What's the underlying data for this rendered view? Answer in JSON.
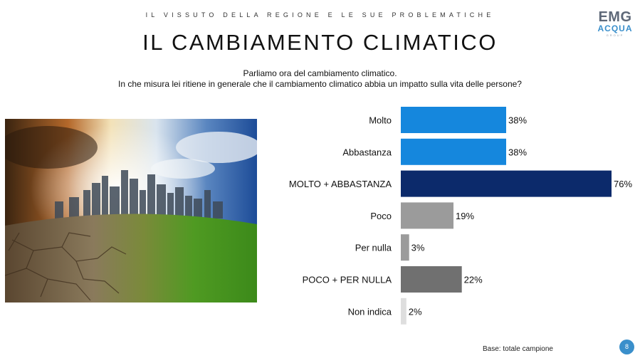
{
  "header": {
    "kicker": "IL VISSUTO DELLA REGIONE E LE SUE PROBLEMATICHE",
    "title": "IL CAMBIAMENTO CLIMATICO",
    "question_line1": "Parliamo ora del cambiamento climatico.",
    "question_line2": "In che misura lei ritiene in generale che il cambiamento climatico abbia un impatto sulla vita delle persone?"
  },
  "logo": {
    "line1": "EMG",
    "line2": "ACQUA",
    "line3": "GROUP"
  },
  "chart_data": {
    "type": "bar",
    "orientation": "horizontal",
    "categories": [
      "Molto",
      "Abbastanza",
      "MOLTO + ABBASTANZA",
      "Poco",
      "Per nulla",
      "POCO + PER NULLA",
      "Non indica"
    ],
    "values": [
      38,
      38,
      76,
      19,
      3,
      22,
      2
    ],
    "labels": [
      "38%",
      "38%",
      "76%",
      "19%",
      "3%",
      "22%",
      "2%"
    ],
    "colors": [
      "#1587dd",
      "#1587dd",
      "#0c2a6b",
      "#9b9b9b",
      "#9b9b9b",
      "#707070",
      "#dedede"
    ],
    "xlim": [
      0,
      76
    ],
    "grid": false,
    "title": "",
    "xlabel": "",
    "ylabel": ""
  },
  "footer": {
    "base": "Base: totale campione",
    "page": "8"
  }
}
